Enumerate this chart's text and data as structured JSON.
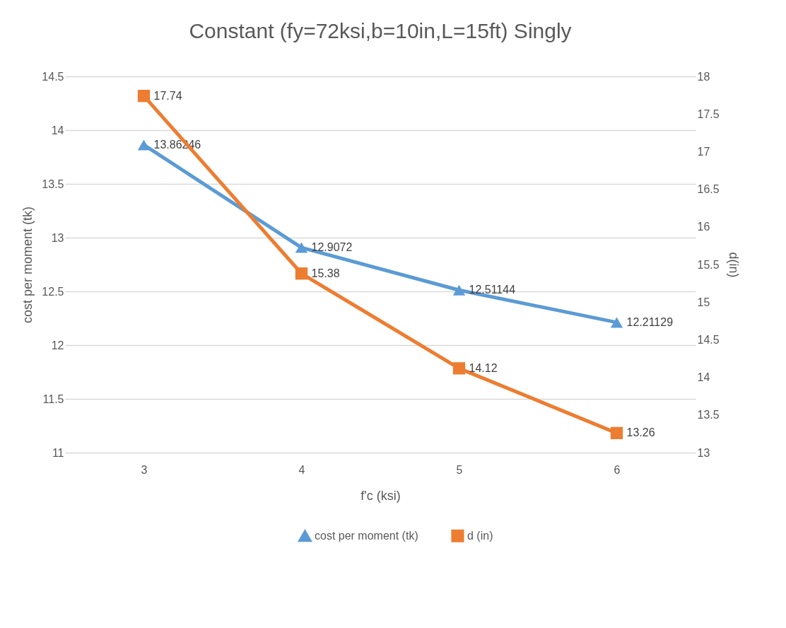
{
  "chart_data": {
    "type": "line",
    "title": "Constant (fy=72ksi,b=10in,L=15ft) Singly",
    "xlabel": "f'c (ksi)",
    "ylabel": "cost per moment (tk)",
    "y2label": "d(in)",
    "categories": [
      "3",
      "4",
      "5",
      "6"
    ],
    "series": [
      {
        "name": "cost per moment (tk)",
        "color": "#5b9bd5",
        "values": [
          13.86246,
          12.9072,
          12.51144,
          12.21129
        ],
        "marker": "triangle"
      },
      {
        "name": "d (in)",
        "color": "#ed7d31",
        "values": [
          17.74,
          15.38,
          14.12,
          13.26
        ],
        "axis": "y2",
        "marker": "square"
      }
    ],
    "ylim": [
      11,
      14.5
    ],
    "yticks": [
      11,
      11.5,
      12,
      12.5,
      13,
      13.5,
      14,
      14.5
    ],
    "y2lim": [
      13,
      18
    ],
    "y2ticks": [
      13,
      13.5,
      14,
      14.5,
      15,
      15.5,
      16,
      16.5,
      17,
      17.5,
      18
    ],
    "grid": "y",
    "legend": "bottom",
    "data_labels": true,
    "line_style": "solid"
  }
}
